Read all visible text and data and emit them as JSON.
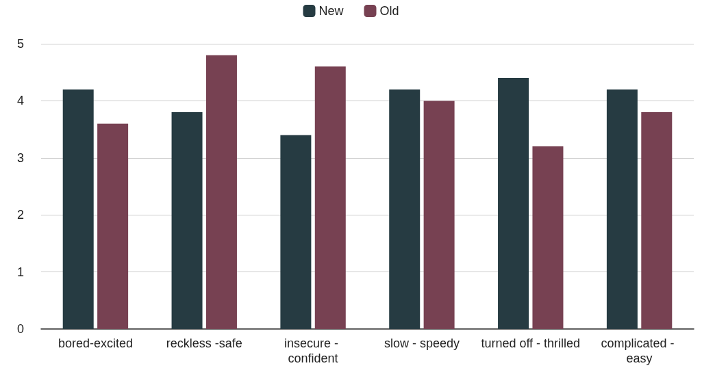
{
  "chart_data": {
    "type": "bar",
    "categories": [
      "bored-excited",
      "reckless -safe",
      "insecure - confident",
      "slow - speedy",
      "turned off - thrilled",
      "complicated - easy"
    ],
    "series": [
      {
        "name": "New",
        "color": "#263b42",
        "values": [
          4.2,
          3.8,
          3.4,
          4.2,
          4.4,
          4.2
        ]
      },
      {
        "name": "Old",
        "color": "#774152",
        "values": [
          3.6,
          4.8,
          4.6,
          4.0,
          3.2,
          3.8
        ]
      }
    ],
    "ylim": [
      0,
      5
    ],
    "yticks": [
      0,
      1,
      2,
      3,
      4,
      5
    ],
    "grid": "y",
    "legend": "top"
  }
}
